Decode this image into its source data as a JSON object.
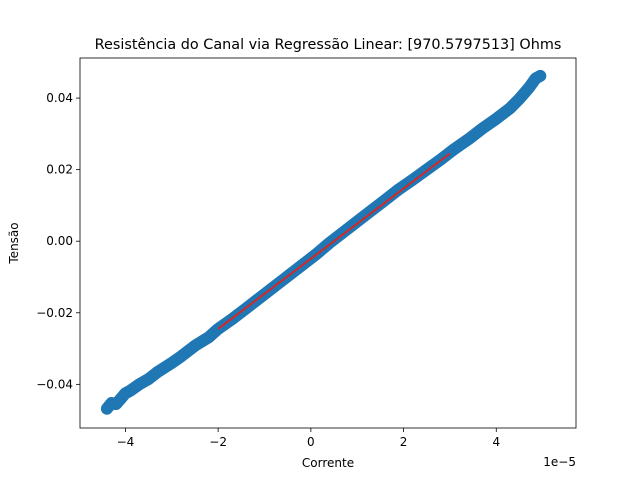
{
  "chart_data": {
    "type": "scatter",
    "title": "Resistência do Canal via Regressão Linear: [970.5797513] Ohms",
    "xlabel": "Corrente",
    "ylabel": "Tensão",
    "x_offset_label": "1e−5",
    "xlim": [
      -4.98,
      5.72
    ],
    "ylim": [
      -0.0522,
      0.0512
    ],
    "x_ticks": [
      -4,
      -2,
      0,
      2,
      4
    ],
    "x_tick_labels": [
      "−4",
      "−2",
      "0",
      "2",
      "4"
    ],
    "y_ticks": [
      -0.04,
      -0.02,
      0.0,
      0.02,
      0.04
    ],
    "y_tick_labels": [
      "−0.04",
      "−0.02",
      "0.00",
      "0.02",
      "0.04"
    ],
    "grid": false,
    "legend": "none",
    "scatter_color": "#1f77b4",
    "fit_color": "#d62728",
    "scatter_points": [
      {
        "x": -4.4,
        "y": -0.0468
      },
      {
        "x": -4.3,
        "y": -0.0452
      },
      {
        "x": -4.2,
        "y": -0.0455
      },
      {
        "x": -4.1,
        "y": -0.044
      },
      {
        "x": -4.0,
        "y": -0.0425
      },
      {
        "x": -3.9,
        "y": -0.0418
      },
      {
        "x": -3.7,
        "y": -0.04
      },
      {
        "x": -3.5,
        "y": -0.0385
      },
      {
        "x": -3.3,
        "y": -0.0365
      },
      {
        "x": -3.0,
        "y": -0.034
      },
      {
        "x": -2.8,
        "y": -0.0322
      },
      {
        "x": -2.5,
        "y": -0.0292
      },
      {
        "x": -2.2,
        "y": -0.0268
      },
      {
        "x": -2.0,
        "y": -0.0245
      },
      {
        "x": -1.7,
        "y": -0.0218
      },
      {
        "x": -1.4,
        "y": -0.0188
      },
      {
        "x": -1.1,
        "y": -0.0158
      },
      {
        "x": -0.8,
        "y": -0.0128
      },
      {
        "x": -0.5,
        "y": -0.0098
      },
      {
        "x": -0.2,
        "y": -0.0068
      },
      {
        "x": 0.1,
        "y": -0.0038
      },
      {
        "x": 0.4,
        "y": -0.0005
      },
      {
        "x": 0.7,
        "y": 0.0025
      },
      {
        "x": 1.0,
        "y": 0.0055
      },
      {
        "x": 1.3,
        "y": 0.0085
      },
      {
        "x": 1.6,
        "y": 0.0115
      },
      {
        "x": 1.9,
        "y": 0.0145
      },
      {
        "x": 2.2,
        "y": 0.0172
      },
      {
        "x": 2.5,
        "y": 0.02
      },
      {
        "x": 2.8,
        "y": 0.0228
      },
      {
        "x": 3.1,
        "y": 0.0258
      },
      {
        "x": 3.4,
        "y": 0.0285
      },
      {
        "x": 3.7,
        "y": 0.0315
      },
      {
        "x": 4.0,
        "y": 0.0342
      },
      {
        "x": 4.3,
        "y": 0.0372
      },
      {
        "x": 4.5,
        "y": 0.0398
      },
      {
        "x": 4.7,
        "y": 0.0428
      },
      {
        "x": 4.85,
        "y": 0.0455
      },
      {
        "x": 4.95,
        "y": 0.0462
      }
    ],
    "fit_line": {
      "x": [
        -2.0,
        3.0
      ],
      "y": [
        -0.0245,
        0.0245
      ]
    }
  }
}
